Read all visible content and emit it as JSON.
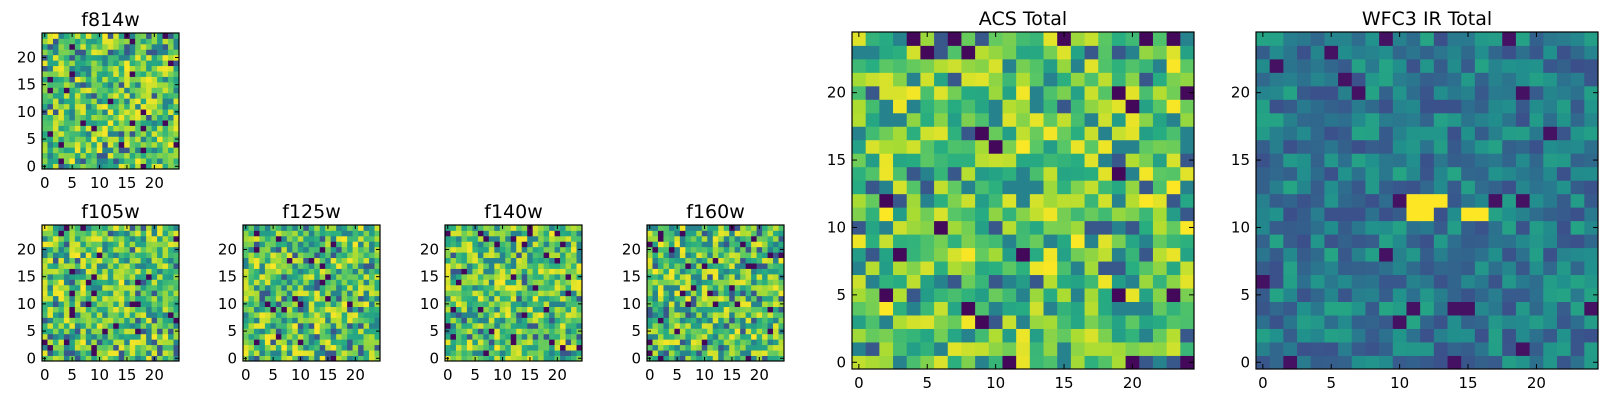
{
  "colors": {
    "colormap": "viridis",
    "axis": "#000000",
    "background": "#ffffff"
  },
  "chart_data": [
    {
      "type": "heatmap",
      "title": "f814w",
      "xticks": [
        "0",
        "5",
        "10",
        "15",
        "20"
      ],
      "yticks": [
        "0",
        "5",
        "10",
        "15",
        "20"
      ],
      "grid_size": 25,
      "xlim": [
        0,
        25
      ],
      "ylim": [
        0,
        25
      ],
      "seed": 11,
      "hotspots": []
    },
    {
      "type": "heatmap",
      "title": "f105w",
      "xticks": [
        "0",
        "5",
        "10",
        "15",
        "20"
      ],
      "yticks": [
        "0",
        "5",
        "10",
        "15",
        "20"
      ],
      "grid_size": 25,
      "xlim": [
        0,
        25
      ],
      "ylim": [
        0,
        25
      ],
      "seed": 23,
      "hotspots": []
    },
    {
      "type": "heatmap",
      "title": "f125w",
      "xticks": [
        "0",
        "5",
        "10",
        "15",
        "20"
      ],
      "yticks": [
        "0",
        "5",
        "10",
        "15",
        "20"
      ],
      "grid_size": 25,
      "xlim": [
        0,
        25
      ],
      "ylim": [
        0,
        25
      ],
      "seed": 37,
      "hotspots": []
    },
    {
      "type": "heatmap",
      "title": "f140w",
      "xticks": [
        "0",
        "5",
        "10",
        "15",
        "20"
      ],
      "yticks": [
        "0",
        "5",
        "10",
        "15",
        "20"
      ],
      "grid_size": 25,
      "xlim": [
        0,
        25
      ],
      "ylim": [
        0,
        25
      ],
      "seed": 51,
      "hotspots": []
    },
    {
      "type": "heatmap",
      "title": "f160w",
      "xticks": [
        "0",
        "5",
        "10",
        "15",
        "20"
      ],
      "yticks": [
        "0",
        "5",
        "10",
        "15",
        "20"
      ],
      "grid_size": 25,
      "xlim": [
        0,
        25
      ],
      "ylim": [
        0,
        25
      ],
      "seed": 67,
      "hotspots": []
    },
    {
      "type": "heatmap",
      "title": "ACS Total",
      "xticks": [
        "0",
        "5",
        "10",
        "15",
        "20"
      ],
      "yticks": [
        "0",
        "5",
        "10",
        "15",
        "20"
      ],
      "grid_size": 25,
      "xlim": [
        0,
        25
      ],
      "ylim": [
        0,
        25
      ],
      "seed": 83,
      "hotspots": []
    },
    {
      "type": "heatmap",
      "title": "WFC3 IR Total",
      "xticks": [
        "0",
        "5",
        "10",
        "15",
        "20"
      ],
      "yticks": [
        "0",
        "5",
        "10",
        "15",
        "20"
      ],
      "grid_size": 25,
      "xlim": [
        0,
        25
      ],
      "ylim": [
        0,
        25
      ],
      "seed": 97,
      "hotspots": [
        [
          11,
          12
        ],
        [
          12,
          12
        ],
        [
          13,
          12
        ],
        [
          11,
          11
        ],
        [
          12,
          11
        ],
        [
          15,
          11
        ],
        [
          16,
          11
        ]
      ]
    }
  ]
}
